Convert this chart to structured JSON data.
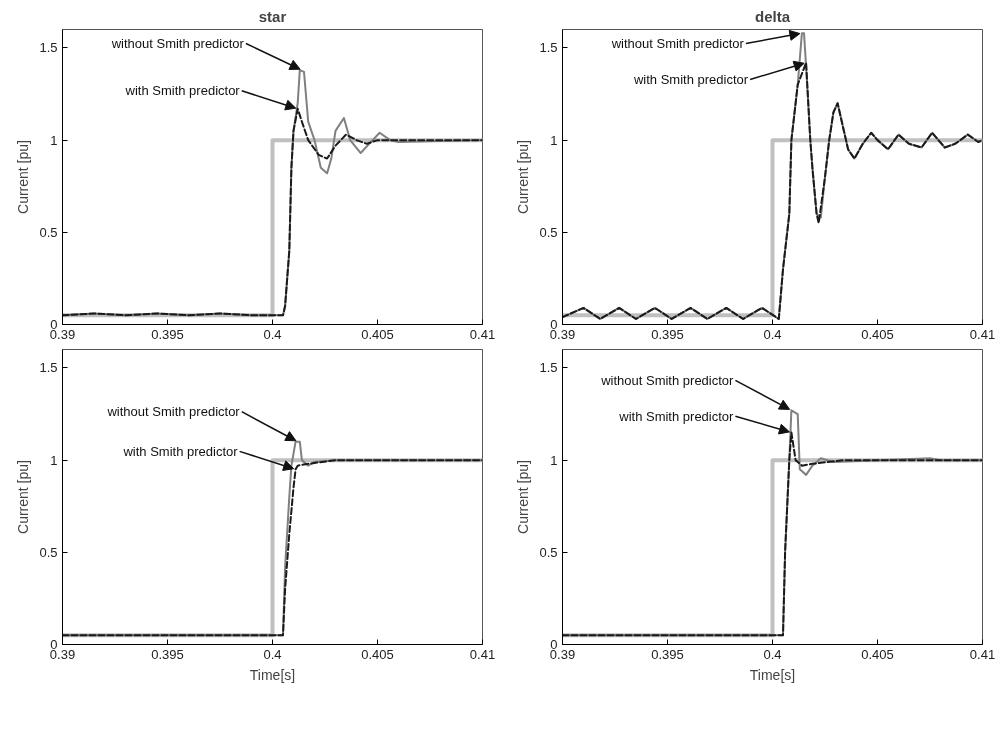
{
  "chart_data": [
    {
      "type": "line",
      "title": "star",
      "ylabel": "Current [pu]",
      "xlim": [
        0.39,
        0.41
      ],
      "xticks": [
        0.39,
        0.395,
        0.4,
        0.405,
        0.41
      ],
      "ylim": [
        0,
        1.6
      ],
      "yticks": [
        0,
        0.5,
        1,
        1.5
      ],
      "grid": false,
      "series": [
        {
          "color": "#c0c0c0",
          "line_style": "solid",
          "x": [
            0.39,
            0.4,
            0.4,
            0.41
          ],
          "values": [
            0.05,
            0.05,
            1,
            1
          ]
        },
        {
          "color": "#808080",
          "line_style": "solid",
          "x": [
            0.39,
            0.3915,
            0.393,
            0.3945,
            0.396,
            0.3975,
            0.399,
            0.4005,
            0.4006,
            0.4008,
            0.4009,
            0.401,
            0.4012,
            0.4013,
            0.4015,
            0.4017,
            0.402,
            0.4023,
            0.4026,
            0.4028,
            0.403,
            0.4034,
            0.4037,
            0.4042,
            0.4046,
            0.4051,
            0.4056,
            0.406,
            0.41
          ],
          "values": [
            0.05,
            0.06,
            0.05,
            0.06,
            0.05,
            0.06,
            0.05,
            0.05,
            0.1,
            0.4,
            0.85,
            1.05,
            1.2,
            1.38,
            1.37,
            1.1,
            1.0,
            0.85,
            0.82,
            0.9,
            1.05,
            1.12,
            1.0,
            0.93,
            0.98,
            1.04,
            1.0,
            0.99,
            1.0
          ]
        },
        {
          "color": "#1a1a1a",
          "line_style": "dashed",
          "x": [
            0.39,
            0.3915,
            0.393,
            0.3945,
            0.396,
            0.3975,
            0.399,
            0.4005,
            0.4006,
            0.4008,
            0.4009,
            0.401,
            0.4012,
            0.4014,
            0.4017,
            0.4022,
            0.4026,
            0.403,
            0.4035,
            0.404,
            0.4045,
            0.405,
            0.41
          ],
          "values": [
            0.05,
            0.06,
            0.05,
            0.06,
            0.05,
            0.06,
            0.05,
            0.05,
            0.1,
            0.4,
            0.85,
            1.05,
            1.17,
            1.1,
            1.0,
            0.92,
            0.9,
            0.97,
            1.03,
            1.0,
            0.98,
            1.0,
            1.0
          ]
        }
      ],
      "annotations": [
        {
          "text": "without Smith predictor",
          "x": 0.4014,
          "y": 1.38
        },
        {
          "text": "with Smith predictor",
          "x": 0.4012,
          "y": 1.17
        }
      ]
    },
    {
      "type": "line",
      "title": "delta",
      "ylabel": "Current [pu]",
      "xlim": [
        0.39,
        0.41
      ],
      "xticks": [
        0.39,
        0.395,
        0.4,
        0.405,
        0.41
      ],
      "ylim": [
        0,
        1.6
      ],
      "yticks": [
        0,
        0.5,
        1,
        1.5
      ],
      "grid": false,
      "series": [
        {
          "color": "#c0c0c0",
          "line_style": "solid",
          "x": [
            0.39,
            0.4,
            0.4,
            0.41
          ],
          "values": [
            0.05,
            0.05,
            1,
            1
          ]
        },
        {
          "color": "#808080",
          "line_style": "solid",
          "x": [
            0.39,
            0.391,
            0.3918,
            0.3927,
            0.3935,
            0.3944,
            0.3952,
            0.3961,
            0.3969,
            0.3978,
            0.3986,
            0.3995,
            0.4003,
            0.4005,
            0.4008,
            0.4009,
            0.4012,
            0.4014,
            0.4015,
            0.4016,
            0.4018,
            0.4019,
            0.4021,
            0.4023,
            0.4025,
            0.4027,
            0.4029,
            0.4031,
            0.4034,
            0.4036,
            0.4039,
            0.4043,
            0.4047,
            0.405,
            0.4055,
            0.406,
            0.4065,
            0.4071,
            0.4076,
            0.4082,
            0.4087,
            0.4093,
            0.4098,
            0.41
          ],
          "values": [
            0.04,
            0.09,
            0.03,
            0.09,
            0.03,
            0.09,
            0.03,
            0.09,
            0.03,
            0.09,
            0.03,
            0.09,
            0.03,
            0.3,
            0.6,
            1.0,
            1.3,
            1.58,
            1.58,
            1.4,
            1.0,
            0.85,
            0.6,
            0.58,
            0.8,
            1.0,
            1.15,
            1.2,
            1.05,
            0.95,
            0.9,
            0.98,
            1.04,
            1.0,
            0.95,
            1.03,
            0.98,
            0.96,
            1.04,
            0.96,
            0.98,
            1.03,
            0.99,
            1.0
          ]
        },
        {
          "color": "#1a1a1a",
          "line_style": "dashed",
          "x": [
            0.39,
            0.391,
            0.3918,
            0.3927,
            0.3935,
            0.3944,
            0.3952,
            0.3961,
            0.3969,
            0.3978,
            0.3986,
            0.3995,
            0.4003,
            0.4005,
            0.4008,
            0.4009,
            0.4012,
            0.4016,
            0.4018,
            0.4019,
            0.4021,
            0.4022,
            0.4025,
            0.4027,
            0.4029,
            0.4031,
            0.4034,
            0.4036,
            0.4039,
            0.4043,
            0.4047,
            0.405,
            0.4055,
            0.406,
            0.4065,
            0.4071,
            0.4076,
            0.4082,
            0.4087,
            0.4093,
            0.4098,
            0.41
          ],
          "values": [
            0.04,
            0.09,
            0.03,
            0.09,
            0.03,
            0.09,
            0.03,
            0.09,
            0.03,
            0.09,
            0.03,
            0.09,
            0.03,
            0.3,
            0.6,
            1.0,
            1.3,
            1.42,
            1.0,
            0.85,
            0.6,
            0.55,
            0.8,
            1.0,
            1.15,
            1.2,
            1.05,
            0.95,
            0.9,
            0.98,
            1.04,
            1.0,
            0.95,
            1.03,
            0.98,
            0.96,
            1.04,
            0.96,
            0.98,
            1.03,
            0.99,
            1.0
          ]
        }
      ],
      "annotations": [
        {
          "text": "without Smith predictor",
          "x": 0.4014,
          "y": 1.58
        },
        {
          "text": "with Smith predictor",
          "x": 0.4016,
          "y": 1.42
        }
      ]
    },
    {
      "type": "line",
      "xlabel": "Time[s]",
      "ylabel": "Current [pu]",
      "xlim": [
        0.39,
        0.41
      ],
      "xticks": [
        0.39,
        0.395,
        0.4,
        0.405,
        0.41
      ],
      "ylim": [
        0,
        1.6
      ],
      "yticks": [
        0,
        0.5,
        1,
        1.5
      ],
      "grid": false,
      "series": [
        {
          "color": "#c0c0c0",
          "line_style": "solid",
          "x": [
            0.39,
            0.4,
            0.4,
            0.41
          ],
          "values": [
            0.05,
            0.05,
            1,
            1
          ]
        },
        {
          "color": "#808080",
          "line_style": "solid",
          "x": [
            0.39,
            0.4005,
            0.4006,
            0.4008,
            0.4009,
            0.4011,
            0.4013,
            0.4014,
            0.4017,
            0.402,
            0.403,
            0.41
          ],
          "values": [
            0.05,
            0.05,
            0.42,
            0.8,
            0.97,
            1.1,
            1.1,
            1.0,
            0.97,
            0.99,
            1.0,
            1.0
          ]
        },
        {
          "color": "#1a1a1a",
          "line_style": "dashed",
          "x": [
            0.39,
            0.4005,
            0.4006,
            0.4008,
            0.401,
            0.4011,
            0.4012,
            0.4017,
            0.403,
            0.41
          ],
          "values": [
            0.05,
            0.05,
            0.3,
            0.6,
            0.85,
            0.95,
            0.97,
            0.98,
            1.0,
            1.0
          ]
        }
      ],
      "annotations": [
        {
          "text": "without Smith predictor",
          "x": 0.4012,
          "y": 1.1
        },
        {
          "text": "with Smith predictor",
          "x": 0.4011,
          "y": 0.95
        }
      ]
    },
    {
      "type": "line",
      "xlabel": "Time[s]",
      "ylabel": "Current [pu]",
      "xlim": [
        0.39,
        0.41
      ],
      "xticks": [
        0.39,
        0.395,
        0.4,
        0.405,
        0.41
      ],
      "ylim": [
        0,
        1.6
      ],
      "yticks": [
        0,
        0.5,
        1,
        1.5
      ],
      "grid": false,
      "series": [
        {
          "color": "#c0c0c0",
          "line_style": "solid",
          "x": [
            0.39,
            0.4,
            0.4,
            0.41
          ],
          "values": [
            0.05,
            0.05,
            1,
            1
          ]
        },
        {
          "color": "#808080",
          "line_style": "solid",
          "x": [
            0.39,
            0.4005,
            0.4006,
            0.4008,
            0.4009,
            0.4012,
            0.4013,
            0.4016,
            0.4019,
            0.4023,
            0.4029,
            0.4075,
            0.408,
            0.41
          ],
          "values": [
            0.05,
            0.05,
            0.5,
            1.0,
            1.27,
            1.25,
            0.95,
            0.92,
            0.97,
            1.01,
            0.99,
            1.01,
            1.0,
            1.0
          ]
        },
        {
          "color": "#1a1a1a",
          "line_style": "dashed",
          "x": [
            0.39,
            0.4005,
            0.4006,
            0.4008,
            0.4009,
            0.4011,
            0.4014,
            0.4019,
            0.4034,
            0.41
          ],
          "values": [
            0.05,
            0.05,
            0.5,
            1.0,
            1.15,
            1.0,
            0.97,
            0.98,
            1.0,
            1.0
          ]
        }
      ],
      "annotations": [
        {
          "text": "without Smith predictor",
          "x": 0.4009,
          "y": 1.27
        },
        {
          "text": "with Smith predictor",
          "x": 0.4009,
          "y": 1.15
        }
      ]
    }
  ]
}
